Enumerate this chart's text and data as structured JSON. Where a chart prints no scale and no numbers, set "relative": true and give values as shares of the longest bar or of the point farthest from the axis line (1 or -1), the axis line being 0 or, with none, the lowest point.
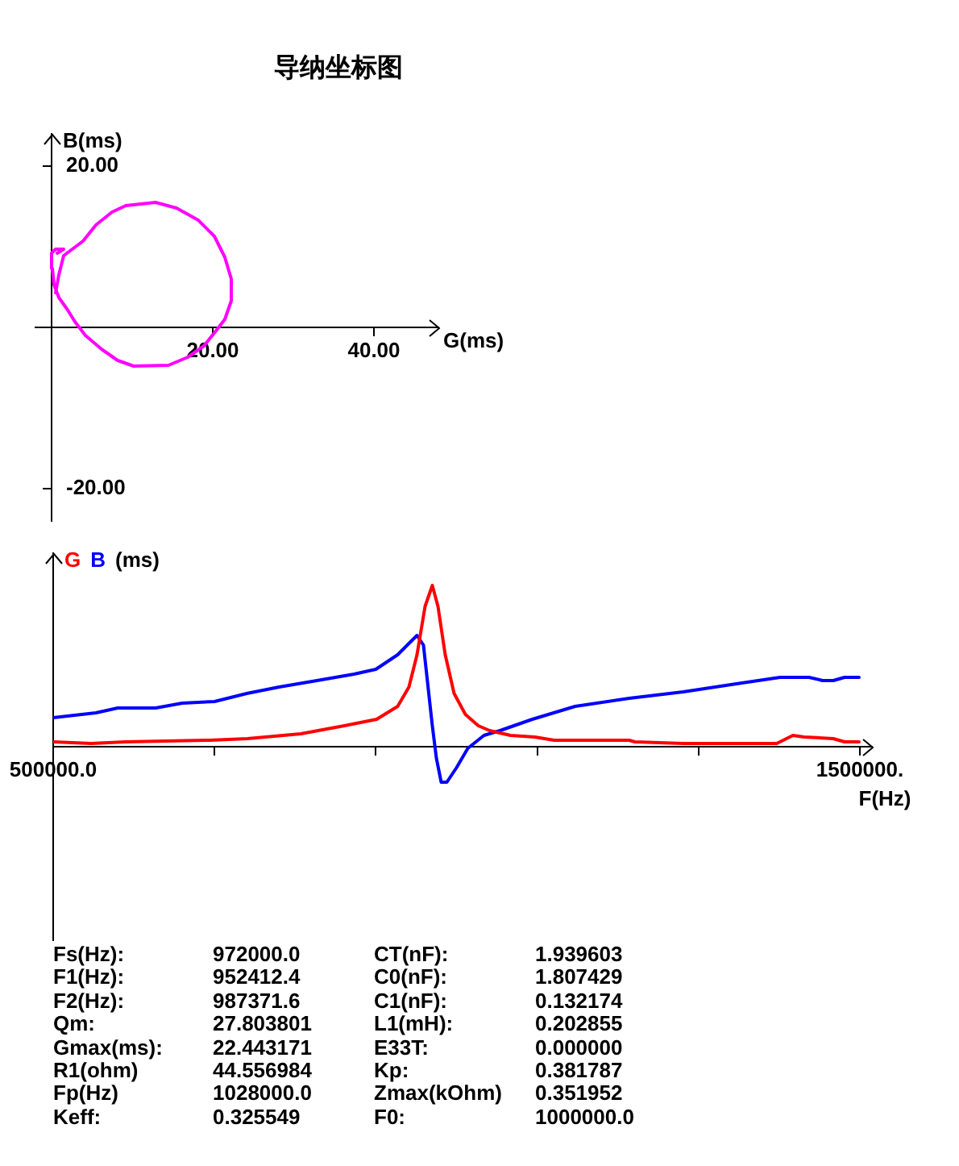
{
  "chart_data": [
    {
      "type": "line",
      "title": "导纳坐标图",
      "xlabel": "G(ms)",
      "ylabel": "B(ms)",
      "color": "#ff00ff",
      "x": [
        0.5,
        0.9,
        1.5,
        3.9,
        5.5,
        7.5,
        9.2,
        12.9,
        15.5,
        18.2,
        20.2,
        21.5,
        22.3,
        22.3,
        21.5,
        20.5,
        18.9,
        16.9,
        14.5,
        10.2,
        8.2,
        6.2,
        4.2,
        2.9,
        1.9,
        0.9,
        0.3,
        0.1,
        0.0,
        0.5,
        1.5,
        0.7
      ],
      "values": [
        4.3,
        6.5,
        8.9,
        10.7,
        12.7,
        14.3,
        15.1,
        15.5,
        14.8,
        13.3,
        11.3,
        8.7,
        6.0,
        3.3,
        1.0,
        -0.3,
        -2.3,
        -3.7,
        -4.7,
        -4.8,
        -4.1,
        -2.7,
        -1.0,
        0.7,
        2.3,
        3.7,
        5.3,
        7.3,
        9.2,
        9.7,
        9.7,
        9.2
      ],
      "xlim": [
        -2,
        48
      ],
      "ylim": [
        -24,
        24
      ],
      "xticks": [
        {
          "value": 20,
          "label": "20.00"
        },
        {
          "value": 40,
          "label": "40.00"
        }
      ],
      "yticks": [
        {
          "value": 20,
          "label": "20.00"
        },
        {
          "value": -20,
          "label": "-20.00"
        }
      ]
    },
    {
      "type": "line",
      "xlabel": "F(Hz)",
      "ylabel": "(ms)",
      "relative": true,
      "legend": "top left",
      "tick_labels": "x",
      "series": [
        {
          "name": "G",
          "color": "#ff0000",
          "x": [
            500000,
            547000,
            590000,
            694000,
            741000,
            807000,
            861000,
            901000,
            927000,
            941000,
            951000,
            961000,
            970000,
            977000,
            986000,
            997000,
            1011000,
            1027000,
            1041000,
            1067000,
            1097000,
            1121000,
            1214000,
            1221000,
            1281000,
            1397000,
            1417000,
            1431000,
            1467000,
            1481000,
            1499000
          ],
          "values": [
            0.03,
            0.02,
            0.03,
            0.04,
            0.05,
            0.08,
            0.13,
            0.17,
            0.25,
            0.37,
            0.57,
            0.87,
            1,
            0.87,
            0.57,
            0.33,
            0.2,
            0.13,
            0.1,
            0.07,
            0.06,
            0.04,
            0.04,
            0.03,
            0.02,
            0.02,
            0.07,
            0.06,
            0.05,
            0.03,
            0.03
          ]
        },
        {
          "name": "B",
          "color": "#0000ff",
          "x": [
            500000,
            553000,
            580000,
            627000,
            660000,
            700000,
            740000,
            780000,
            827000,
            873000,
            900000,
            927000,
            951000,
            959000,
            970000,
            975000,
            981000,
            988000,
            1000000,
            1014000,
            1034000,
            1054000,
            1094000,
            1147000,
            1214000,
            1281000,
            1347000,
            1401000,
            1437000,
            1454000,
            1467000,
            1481000,
            1499000
          ],
          "values": [
            0.18,
            0.21,
            0.24,
            0.24,
            0.27,
            0.28,
            0.33,
            0.37,
            0.41,
            0.45,
            0.48,
            0.57,
            0.69,
            0.63,
            0.13,
            -0.07,
            -0.22,
            -0.22,
            -0.13,
            -0.01,
            0.07,
            0.1,
            0.17,
            0.25,
            0.3,
            0.34,
            0.39,
            0.43,
            0.43,
            0.41,
            0.41,
            0.43,
            0.43
          ]
        }
      ],
      "xlim": [
        500000,
        1515000
      ],
      "xticks": [
        {
          "value": 500000,
          "label": "500000.0"
        },
        {
          "value": 700000,
          "label": null
        },
        {
          "value": 900000,
          "label": null
        },
        {
          "value": 1100000,
          "label": null
        },
        {
          "value": 1300000,
          "label": null
        },
        {
          "value": 1500000,
          "label": "1500000."
        }
      ]
    },
    {
      "type": "other",
      "annotations": [
        "Fs(Hz):",
        "972000.0",
        "CT(nF):",
        "1.939603",
        "F1(Hz):",
        "952412.4",
        "C0(nF):",
        "1.807429",
        "F2(Hz):",
        "987371.6",
        "C1(nF):",
        "0.132174",
        "Qm:",
        "27.803801",
        "L1(mH):",
        "0.202855",
        "Gmax(ms):",
        "22.443171",
        "E33T:",
        "0.000000",
        "R1(ohm)",
        "44.556984",
        "Kp:",
        "0.381787",
        "Fp(Hz)",
        "1028000.0",
        "Zmax(kOhm)",
        "0.351952",
        "Keff:",
        "0.325549",
        "F0:",
        "1000000.0"
      ]
    }
  ]
}
